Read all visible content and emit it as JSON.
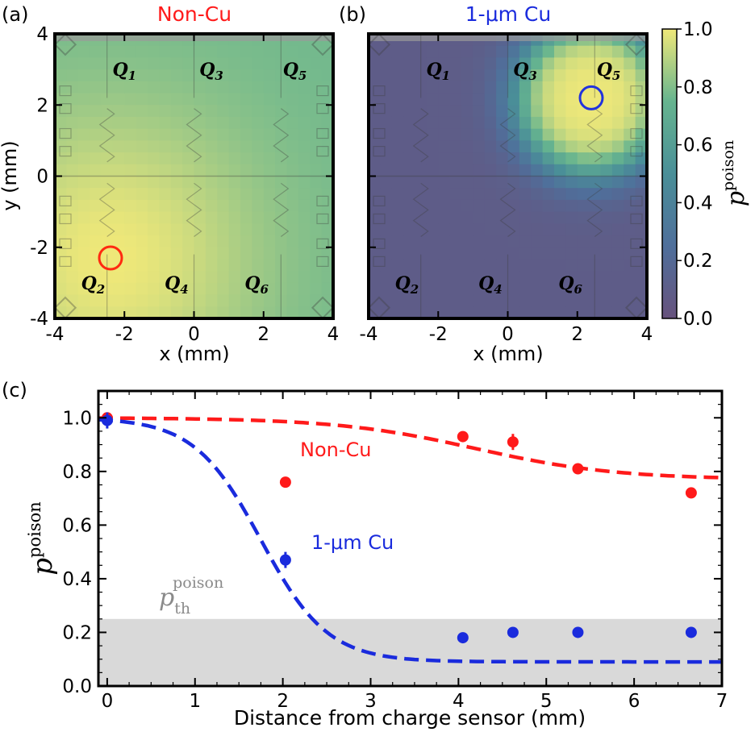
{
  "chart_data": [
    {
      "type": "heatmap",
      "panel": "(a)",
      "title": "Non-Cu",
      "xlabel": "x (mm)",
      "ylabel": "y (mm)",
      "xlim": [
        -4,
        4
      ],
      "ylim": [
        -4,
        4
      ],
      "xticks": [
        "-4",
        "-2",
        "0",
        "2",
        "4"
      ],
      "yticks": [
        "-4",
        "-2",
        "0",
        "2",
        "4"
      ],
      "qubits": [
        {
          "label": "Q",
          "sub": "1",
          "x": -2.0,
          "y": 3.0
        },
        {
          "label": "Q",
          "sub": "3",
          "x": 0.5,
          "y": 3.0
        },
        {
          "label": "Q",
          "sub": "5",
          "x": 2.9,
          "y": 3.0
        },
        {
          "label": "Q",
          "sub": "2",
          "x": -2.9,
          "y": -3.0
        },
        {
          "label": "Q",
          "sub": "4",
          "x": -0.5,
          "y": -3.0
        },
        {
          "label": "Q",
          "sub": "6",
          "x": 1.8,
          "y": -3.0
        }
      ],
      "sensor": {
        "x": -2.4,
        "y": -2.3,
        "color": "#ff2a10"
      },
      "field": {
        "model": "decay_from_sensor",
        "sensor_x": -2.4,
        "sensor_y": -2.3,
        "floor": 0.77,
        "lambda": 4.2
      }
    },
    {
      "type": "heatmap",
      "panel": "(b)",
      "title": "1-μm Cu",
      "xlabel": "x (mm)",
      "xlim": [
        -4,
        4
      ],
      "ylim": [
        -4,
        4
      ],
      "xticks": [
        "-4",
        "-2",
        "0",
        "2",
        "4"
      ],
      "qubits": [
        {
          "label": "Q",
          "sub": "1",
          "x": -2.0,
          "y": 3.0
        },
        {
          "label": "Q",
          "sub": "3",
          "x": 0.5,
          "y": 3.0
        },
        {
          "label": "Q",
          "sub": "5",
          "x": 2.9,
          "y": 3.0
        },
        {
          "label": "Q",
          "sub": "2",
          "x": -2.9,
          "y": -3.0
        },
        {
          "label": "Q",
          "sub": "4",
          "x": -0.5,
          "y": -3.0
        },
        {
          "label": "Q",
          "sub": "6",
          "x": 1.8,
          "y": -3.0
        }
      ],
      "sensor": {
        "x": 2.4,
        "y": 2.2,
        "color": "#2233dd"
      },
      "field": {
        "model": "sigmoid_from_sensor",
        "sensor_x": 2.4,
        "sensor_y": 2.2,
        "floor": 0.09,
        "r0": 2.15,
        "width": 0.35
      }
    },
    {
      "type": "colorbar",
      "label": "p",
      "label_sup": "poison",
      "range": [
        0.0,
        1.0
      ],
      "ticks": [
        "0.0",
        "0.2",
        "0.4",
        "0.6",
        "0.8",
        "1.0"
      ],
      "colormap": "viridis-faded"
    },
    {
      "type": "scatter",
      "panel": "(c)",
      "xlabel": "Distance from charge sensor (mm)",
      "ylabel": "p",
      "ylabel_sup": "poison",
      "xlim": [
        -0.1,
        7.0
      ],
      "ylim": [
        0.0,
        1.1
      ],
      "xticks": [
        "0",
        "1",
        "2",
        "3",
        "4",
        "5",
        "6",
        "7"
      ],
      "yticks": [
        "0.0",
        "0.2",
        "0.4",
        "0.6",
        "0.8",
        "1.0"
      ],
      "threshold": {
        "label": "p",
        "label_sub": "th",
        "label_sup": "poison",
        "value": 0.25,
        "color": "#d9d9d9"
      },
      "series": [
        {
          "name": "Non-Cu",
          "color": "#ff1a1a",
          "x": [
            0.0,
            2.03,
            4.05,
            4.62,
            5.36,
            6.65
          ],
          "y": [
            1.0,
            0.76,
            0.93,
            0.91,
            0.81,
            0.72
          ],
          "err": [
            0.01,
            0.02,
            0.02,
            0.03,
            0.02,
            0.02
          ],
          "fit": {
            "floor": 0.77,
            "r0": 4.2,
            "width": 0.8
          }
        },
        {
          "name": "1-μm Cu",
          "color": "#1a2bdd",
          "x": [
            0.0,
            2.03,
            4.05,
            4.62,
            5.36,
            6.65
          ],
          "y": [
            0.99,
            0.47,
            0.18,
            0.2,
            0.2,
            0.2
          ],
          "err": [
            0.03,
            0.03,
            0.01,
            0.01,
            0.02,
            0.02
          ],
          "fit": {
            "floor": 0.09,
            "r0": 1.75,
            "width": 0.38
          }
        }
      ]
    }
  ]
}
